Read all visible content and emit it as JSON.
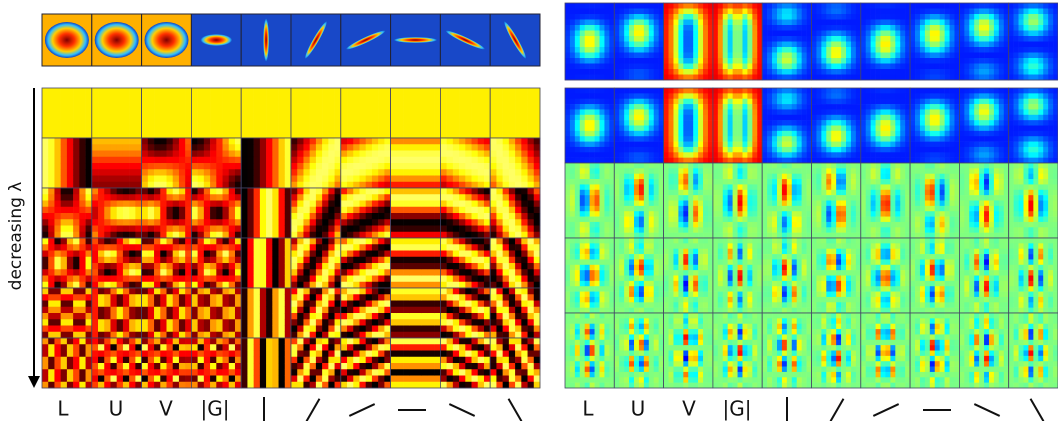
{
  "figure": {
    "axis_label": "decreasing λ",
    "left_panel": {
      "column_labels": [
        "L",
        "U",
        "V",
        "|G|"
      ]
    },
    "right_panel": {
      "column_labels": [
        "L",
        "U",
        "V",
        "|G|"
      ]
    }
  }
}
